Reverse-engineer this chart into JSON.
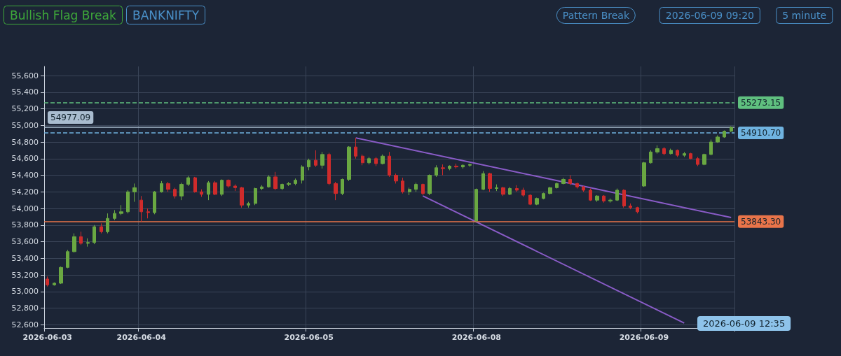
{
  "chart_data": {
    "type": "candlestick",
    "title": "Bullish Flag Break",
    "subtitle": "BANKNIFTY",
    "annotations": [
      "Pattern Break",
      "2026-06-09 09:20",
      "5 minute",
      "2026-06-09 12:35"
    ],
    "categories": [
      "2026-06-03",
      null,
      null,
      null,
      null,
      null,
      null,
      null,
      null,
      null,
      null,
      null,
      null,
      null,
      "2026-06-04",
      null,
      null,
      null,
      null,
      null,
      null,
      null,
      null,
      null,
      null,
      null,
      null,
      null,
      null,
      null,
      null,
      null,
      null,
      null,
      null,
      null,
      null,
      null,
      null,
      "2026-06-05",
      null,
      null,
      null,
      null,
      null,
      null,
      null,
      null,
      null,
      null,
      null,
      null,
      null,
      null,
      null,
      null,
      null,
      null,
      null,
      null,
      null,
      null,
      null,
      null,
      "2026-06-08",
      null,
      null,
      null,
      null,
      null,
      null,
      null,
      null,
      null,
      null,
      null,
      null,
      null,
      null,
      null,
      null,
      null,
      null,
      null,
      null,
      null,
      null,
      null,
      null,
      "2026-06-09",
      null,
      null,
      null,
      null,
      null,
      null,
      null,
      null,
      null,
      null,
      null,
      null,
      null
    ],
    "series": [
      {
        "colors": [
          "#cf2b2b",
          "#6aa842",
          "#6aa842",
          "#6aa842",
          "#6aa842",
          "#cf2b2b",
          "#6aa842",
          "#6aa842",
          "#cf2b2b",
          "#6aa842",
          "#6aa842",
          "#6aa842",
          "#6aa842",
          "#6aa842",
          "#cf2b2b",
          "#cf2b2b",
          "#6aa842",
          "#6aa842",
          "#cf2b2b",
          "#cf2b2b",
          "#6aa842",
          "#6aa842",
          "#cf2b2b",
          "#cf2b2b",
          "#6aa842",
          "#cf2b2b",
          "#6aa842",
          "#cf2b2b",
          "#cf2b2b",
          "#cf2b2b",
          "#6aa842",
          "#6aa842",
          "#6aa842",
          "#6aa842",
          "#cf2b2b",
          "#6aa842",
          "#6aa842",
          "#6aa842",
          "#6aa842",
          "#6aa842",
          "#cf2b2b",
          "#6aa842",
          "#cf2b2b",
          "#cf2b2b",
          "#6aa842",
          "#6aa842",
          "#cf2b2b",
          "#cf2b2b",
          "#6aa842",
          "#cf2b2b",
          "#6aa842",
          "#cf2b2b",
          "#cf2b2b",
          "#cf2b2b",
          "#6aa842",
          "#6aa842",
          "#cf2b2b",
          "#6aa842",
          "#6aa842",
          "#cf2b2b",
          "#6aa842",
          "#cf2b2b",
          "#6aa842",
          "#6aa842",
          "#6aa842",
          "#6aa842",
          "#cf2b2b",
          "#6aa842",
          "#cf2b2b",
          "#6aa842",
          "#cf2b2b",
          "#cf2b2b",
          "#cf2b2b",
          "#6aa842",
          "#6aa842",
          "#6aa842",
          "#6aa842",
          "#6aa842",
          "#cf2b2b",
          "#cf2b2b",
          "#cf2b2b",
          "#cf2b2b",
          "#6aa842",
          "#cf2b2b",
          "#6aa842",
          "#6aa842",
          "#cf2b2b",
          "#cf2b2b",
          "#cf2b2b",
          "#6aa842",
          "#6aa842",
          "#6aa842",
          "#cf2b2b",
          "#6aa842",
          "#cf2b2b",
          "#6aa842",
          "#cf2b2b",
          "#cf2b2b",
          "#6aa842",
          "#6aa842",
          "#6aa842",
          "#6aa842",
          "#6aa842"
        ],
        "ohlc": [
          [
            53150,
            53180,
            53060,
            53080
          ],
          [
            53080,
            53110,
            53070,
            53100
          ],
          [
            53100,
            53300,
            53090,
            53290
          ],
          [
            53290,
            53500,
            53280,
            53480
          ],
          [
            53480,
            53700,
            53470,
            53660
          ],
          [
            53660,
            53720,
            53560,
            53580
          ],
          [
            53580,
            53640,
            53540,
            53590
          ],
          [
            53590,
            53800,
            53570,
            53780
          ],
          [
            53780,
            53820,
            53700,
            53720
          ],
          [
            53720,
            53940,
            53700,
            53880
          ],
          [
            53880,
            53980,
            53860,
            53940
          ],
          [
            53940,
            54040,
            53920,
            53960
          ],
          [
            53960,
            54220,
            53940,
            54200
          ],
          [
            54200,
            54300,
            54080,
            54250
          ],
          [
            54100,
            54150,
            53840,
            53960
          ],
          [
            53960,
            54000,
            53880,
            53950
          ],
          [
            53950,
            54210,
            53930,
            54200
          ],
          [
            54200,
            54330,
            54190,
            54300
          ],
          [
            54300,
            54320,
            54200,
            54230
          ],
          [
            54230,
            54250,
            54120,
            54150
          ],
          [
            54150,
            54310,
            54100,
            54290
          ],
          [
            54290,
            54390,
            54270,
            54370
          ],
          [
            54370,
            54380,
            54190,
            54200
          ],
          [
            54200,
            54230,
            54140,
            54170
          ],
          [
            54170,
            54330,
            54100,
            54310
          ],
          [
            54310,
            54330,
            54160,
            54170
          ],
          [
            54170,
            54350,
            54150,
            54340
          ],
          [
            54340,
            54350,
            54250,
            54270
          ],
          [
            54270,
            54290,
            54210,
            54250
          ],
          [
            54250,
            54260,
            54010,
            54040
          ],
          [
            54040,
            54080,
            54010,
            54060
          ],
          [
            54060,
            54250,
            54040,
            54240
          ],
          [
            54240,
            54280,
            54220,
            54260
          ],
          [
            54260,
            54400,
            54250,
            54380
          ],
          [
            54380,
            54440,
            54220,
            54240
          ],
          [
            54240,
            54300,
            54220,
            54290
          ],
          [
            54290,
            54320,
            54270,
            54300
          ],
          [
            54300,
            54360,
            54280,
            54340
          ],
          [
            54340,
            54520,
            54300,
            54500
          ],
          [
            54500,
            54600,
            54460,
            54580
          ],
          [
            54580,
            54700,
            54500,
            54520
          ],
          [
            54520,
            54680,
            54480,
            54650
          ],
          [
            54650,
            54670,
            54280,
            54300
          ],
          [
            54300,
            54320,
            54100,
            54180
          ],
          [
            54180,
            54360,
            54160,
            54350
          ],
          [
            54350,
            54750,
            54330,
            54740
          ],
          [
            54740,
            54850,
            54600,
            54630
          ],
          [
            54630,
            54650,
            54520,
            54550
          ],
          [
            54550,
            54620,
            54530,
            54600
          ],
          [
            54600,
            54620,
            54510,
            54540
          ],
          [
            54540,
            54650,
            54530,
            54630
          ],
          [
            54630,
            54680,
            54380,
            54400
          ],
          [
            54400,
            54420,
            54300,
            54330
          ],
          [
            54330,
            54370,
            54180,
            54200
          ],
          [
            54200,
            54250,
            54160,
            54230
          ],
          [
            54230,
            54310,
            54200,
            54290
          ],
          [
            54290,
            54300,
            54160,
            54180
          ],
          [
            54180,
            54410,
            54160,
            54400
          ],
          [
            54400,
            54520,
            54380,
            54490
          ],
          [
            54490,
            54530,
            54400,
            54480
          ],
          [
            54480,
            54520,
            54460,
            54510
          ],
          [
            54510,
            54540,
            54480,
            54500
          ],
          [
            54500,
            54530,
            54480,
            54520
          ],
          [
            54520,
            54540,
            54500,
            54530
          ],
          [
            53850,
            54240,
            53840,
            54230
          ],
          [
            54230,
            54450,
            54220,
            54420
          ],
          [
            54420,
            54430,
            54200,
            54240
          ],
          [
            54240,
            54290,
            54210,
            54250
          ],
          [
            54250,
            54260,
            54150,
            54170
          ],
          [
            54170,
            54260,
            54160,
            54240
          ],
          [
            54240,
            54280,
            54200,
            54220
          ],
          [
            54220,
            54250,
            54140,
            54160
          ],
          [
            54160,
            54170,
            54040,
            54050
          ],
          [
            54050,
            54130,
            54040,
            54120
          ],
          [
            54120,
            54190,
            54110,
            54180
          ],
          [
            54180,
            54260,
            54170,
            54250
          ],
          [
            54250,
            54310,
            54240,
            54300
          ],
          [
            54300,
            54370,
            54290,
            54350
          ],
          [
            54350,
            54400,
            54280,
            54300
          ],
          [
            54300,
            54310,
            54240,
            54260
          ],
          [
            54260,
            54270,
            54200,
            54220
          ],
          [
            54220,
            54240,
            54090,
            54100
          ],
          [
            54100,
            54160,
            54080,
            54150
          ],
          [
            54150,
            54160,
            54070,
            54090
          ],
          [
            54090,
            54120,
            54070,
            54100
          ],
          [
            54100,
            54240,
            54090,
            54220
          ],
          [
            54220,
            54230,
            54010,
            54030
          ],
          [
            54030,
            54060,
            53990,
            54010
          ],
          [
            54010,
            54020,
            53940,
            53960
          ],
          [
            54270,
            54560,
            54260,
            54550
          ],
          [
            54550,
            54700,
            54540,
            54680
          ],
          [
            54680,
            54760,
            54660,
            54720
          ],
          [
            54720,
            54740,
            54640,
            54660
          ],
          [
            54660,
            54720,
            54650,
            54700
          ],
          [
            54700,
            54710,
            54620,
            54640
          ],
          [
            54640,
            54680,
            54620,
            54660
          ],
          [
            54660,
            54670,
            54590,
            54600
          ],
          [
            54600,
            54620,
            54510,
            54530
          ],
          [
            54530,
            54660,
            54520,
            54650
          ],
          [
            54650,
            54830,
            54640,
            54800
          ],
          [
            54800,
            54880,
            54790,
            54860
          ],
          [
            54860,
            54940,
            54850,
            54930
          ],
          [
            54930,
            54990,
            54920,
            54977.09
          ]
        ]
      },
      {
        "type": "line",
        "color": "#8a5cc8",
        "values": [
          null,
          null,
          null,
          null,
          null,
          null,
          null,
          null,
          null,
          null,
          null,
          null,
          null,
          null,
          null,
          null,
          null,
          null,
          null,
          null,
          null,
          null,
          null,
          null,
          null,
          null,
          null,
          null,
          null,
          null,
          null,
          null,
          null,
          null,
          null,
          null,
          null,
          null,
          null,
          null,
          null,
          null,
          null,
          null,
          null,
          null,
          54850,
          null,
          null,
          null,
          null,
          null,
          null,
          null,
          null,
          null,
          null,
          null,
          null,
          null,
          null,
          null,
          null,
          null,
          null,
          null,
          null,
          null,
          null,
          null,
          null,
          null,
          null,
          null,
          null,
          null,
          null,
          null,
          null,
          null,
          null,
          null,
          null,
          null,
          null,
          null,
          null,
          null,
          null,
          null,
          null,
          null,
          null,
          null,
          null,
          null,
          null,
          null,
          null,
          null,
          null,
          null,
          53890
        ]
      },
      {
        "type": "line",
        "color": "#8a5cc8",
        "values": [
          null,
          null,
          null,
          null,
          null,
          null,
          null,
          null,
          null,
          null,
          null,
          null,
          null,
          null,
          null,
          null,
          null,
          null,
          null,
          null,
          null,
          null,
          null,
          null,
          null,
          null,
          null,
          null,
          null,
          null,
          null,
          null,
          null,
          null,
          null,
          null,
          null,
          null,
          null,
          null,
          null,
          null,
          null,
          null,
          null,
          null,
          null,
          null,
          null,
          null,
          null,
          null,
          null,
          null,
          null,
          null,
          54150,
          null,
          null,
          null,
          null,
          null,
          null,
          null,
          null,
          null,
          null,
          null,
          null,
          null,
          null,
          null,
          null,
          null,
          null,
          null,
          null,
          null,
          null,
          null,
          null,
          null,
          null,
          null,
          null,
          null,
          null,
          null,
          null,
          null,
          null,
          null,
          null,
          null,
          null,
          52620,
          null,
          null,
          null,
          null,
          null,
          null,
          null
        ]
      }
    ],
    "ylim": [
      52560,
      55710
    ],
    "yticks": [
      {
        "value": 52600,
        "label": "52,600"
      },
      {
        "value": 52800,
        "label": "52,800"
      },
      {
        "value": 53000,
        "label": "53,000"
      },
      {
        "value": 53200,
        "label": "53,200"
      },
      {
        "value": 53400,
        "label": "53,400"
      },
      {
        "value": 53600,
        "label": "53,600"
      },
      {
        "value": 53800,
        "label": "53,800"
      },
      {
        "value": 54000,
        "label": "54,000"
      },
      {
        "value": 54200,
        "label": "54,200"
      },
      {
        "value": 54400,
        "label": "54,400"
      },
      {
        "value": 54600,
        "label": "54,600"
      },
      {
        "value": 54800,
        "label": "54,800"
      },
      {
        "value": 55000,
        "label": "55,000"
      },
      {
        "value": 55200,
        "label": "55,200"
      },
      {
        "value": 55400,
        "label": "55,400"
      },
      {
        "value": 55600,
        "label": "55,600"
      }
    ],
    "ref_lines": [
      {
        "axis": "y",
        "value": 55273.15,
        "label": "55273.15",
        "color": "#5fbf7f",
        "line_style": "dashed"
      },
      {
        "axis": "y",
        "value": 54910.7,
        "label": "54910.70",
        "color": "#6fb3e0",
        "line_style": "dashed"
      },
      {
        "axis": "y",
        "value": 53843.3,
        "label": "53843.30",
        "color": "#e8744a",
        "line_style": "solid"
      },
      {
        "axis": "y",
        "value": 54977.09,
        "label": "54977.09",
        "color": "#a9bccf",
        "line_style": "solid"
      }
    ],
    "grid": true
  }
}
